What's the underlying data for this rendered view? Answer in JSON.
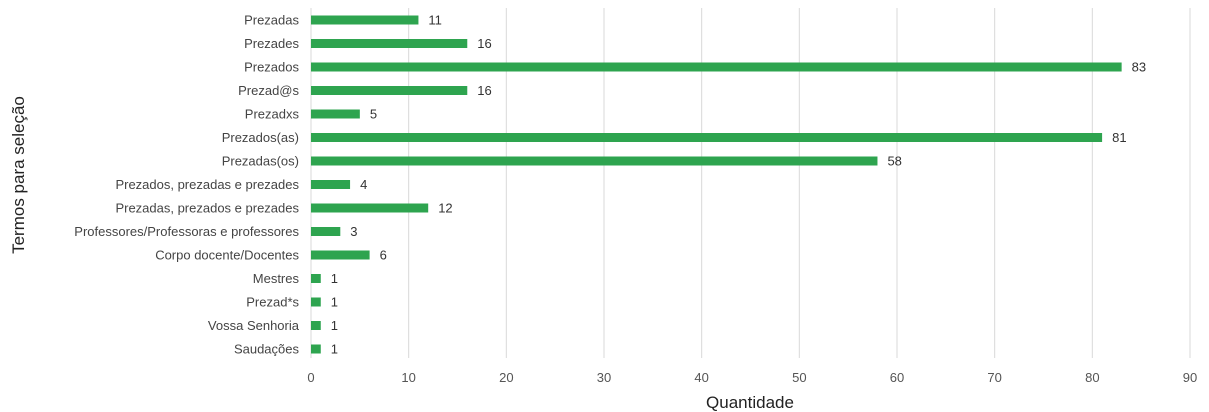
{
  "chart_data": {
    "type": "bar",
    "orientation": "horizontal",
    "categories": [
      "Prezadas",
      "Prezades",
      "Prezados",
      "Prezad@s",
      "Prezadxs",
      "Prezados(as)",
      "Prezadas(os)",
      "Prezados, prezadas e prezades",
      "Prezadas, prezados e prezades",
      "Professores/Professoras e professores",
      "Corpo docente/Docentes",
      "Mestres",
      "Prezad*s",
      "Vossa Senhoria",
      "Saudações"
    ],
    "values": [
      11,
      16,
      83,
      16,
      5,
      81,
      58,
      4,
      12,
      3,
      6,
      1,
      1,
      1,
      1
    ],
    "xlabel": "Quantidade",
    "ylabel": "Termos para seleção",
    "xlim": [
      0,
      90
    ],
    "xticks": [
      0,
      10,
      20,
      30,
      40,
      50,
      60,
      70,
      80,
      90
    ],
    "grid": "vertical",
    "bar_color": "#2ea44f",
    "legend": "none"
  }
}
